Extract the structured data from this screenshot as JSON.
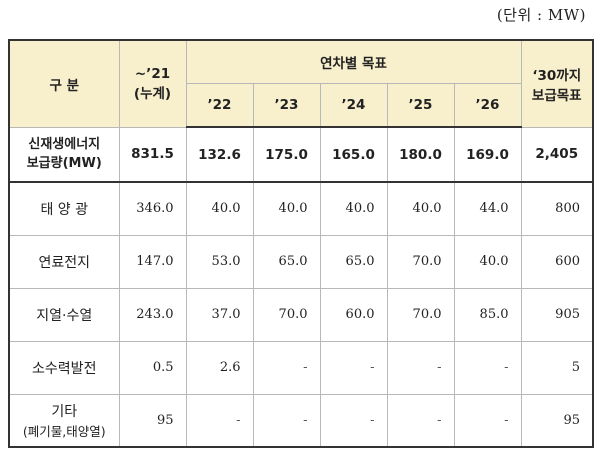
{
  "unit_note": "(단위 : MW)",
  "headers": {
    "category": "구 분",
    "cumulative_line1": "~’21",
    "cumulative_line2": "(누계)",
    "annual_target": "연차별 목표",
    "years": [
      "’22",
      "’23",
      "’24",
      "’25",
      "’26"
    ],
    "target2030_line1": "‘30까지",
    "target2030_line2": "보급목표"
  },
  "total_row": {
    "label_line1": "신재생에너지",
    "label_line2": "보급량(MW)",
    "values": [
      "831.5",
      "132.6",
      "175.0",
      "165.0",
      "180.0",
      "169.0",
      "2,405"
    ]
  },
  "rows": [
    {
      "label": "태 양 광",
      "values": [
        "346.0",
        "40.0",
        "40.0",
        "40.0",
        "40.0",
        "44.0",
        "800"
      ]
    },
    {
      "label": "연료전지",
      "values": [
        "147.0",
        "53.0",
        "65.0",
        "65.0",
        "70.0",
        "40.0",
        "600"
      ]
    },
    {
      "label": "지열·수열",
      "values": [
        "243.0",
        "37.0",
        "70.0",
        "60.0",
        "70.0",
        "85.0",
        "905"
      ]
    },
    {
      "label": "소수력발전",
      "values": [
        "0.5",
        "2.6",
        "-",
        "-",
        "-",
        "-",
        "5"
      ]
    },
    {
      "label_line1": "기타",
      "label_line2": "(폐기물,태양열)",
      "values": [
        "95",
        "-",
        "-",
        "-",
        "-",
        "-",
        "95"
      ]
    }
  ]
}
